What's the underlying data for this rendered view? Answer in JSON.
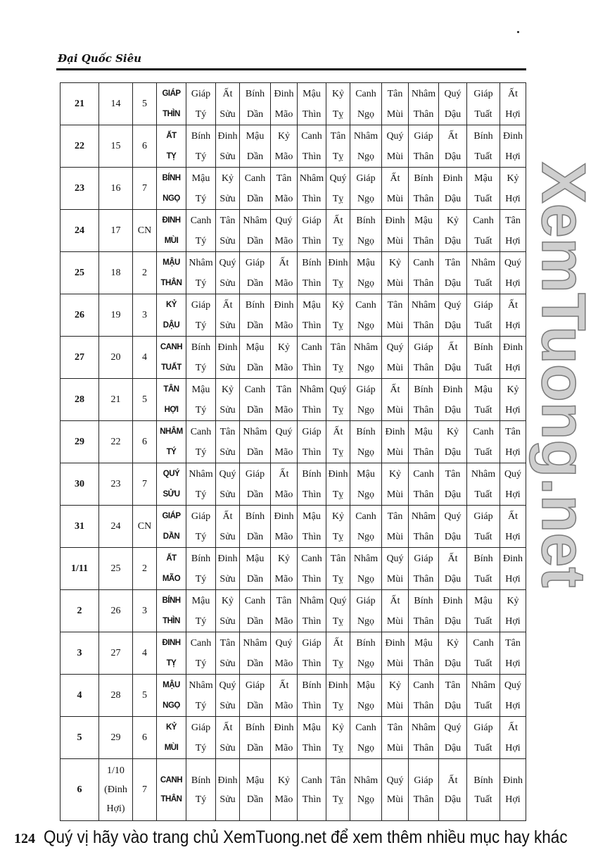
{
  "header": {
    "running_title": "Đại Quốc Siêu"
  },
  "page_number": "124",
  "watermark": "XemTuong.net",
  "footer": {
    "text": "Quý vị hãy vào trang chủ XemTuong.net để xem thêm nhiều mục hay khác"
  },
  "table": {
    "rows": [
      {
        "solar": "21",
        "lunar": "14",
        "weekday": "5",
        "day": [
          "GIÁP",
          "THÌN"
        ],
        "hours": [
          "Giáp Tý",
          "Ất Sửu",
          "Bính Dần",
          "Đinh Mão",
          "Mậu Thìn",
          "Kỷ Tỵ",
          "Canh Ngọ",
          "Tân Mùi",
          "Nhâm Thân",
          "Quý Dậu",
          "Giáp Tuất",
          "Ất Hợi"
        ]
      },
      {
        "solar": "22",
        "lunar": "15",
        "weekday": "6",
        "day": [
          "ẤT",
          "TỴ"
        ],
        "hours": [
          "Bính Tý",
          "Đinh Sửu",
          "Mậu Dần",
          "Kỷ Mão",
          "Canh Thìn",
          "Tân Tỵ",
          "Nhâm Ngọ",
          "Quý Mùi",
          "Giáp Thân",
          "Ất Dậu",
          "Bính Tuất",
          "Đinh Hợi"
        ]
      },
      {
        "solar": "23",
        "lunar": "16",
        "weekday": "7",
        "day": [
          "BÍNH",
          "NGỌ"
        ],
        "hours": [
          "Mậu Tý",
          "Kỷ Sửu",
          "Canh Dần",
          "Tân Mão",
          "Nhâm Thìn",
          "Quý Tỵ",
          "Giáp Ngọ",
          "Ất Mùi",
          "Bính Thân",
          "Đinh Dậu",
          "Mậu Tuất",
          "Kỷ Hợi"
        ]
      },
      {
        "solar": "24",
        "lunar": "17",
        "weekday": "CN",
        "day": [
          "ĐINH",
          "MÙI"
        ],
        "hours": [
          "Canh Tý",
          "Tân Sửu",
          "Nhâm Dần",
          "Quý Mão",
          "Giáp Thìn",
          "Ất Tỵ",
          "Bính Ngọ",
          "Đinh Mùi",
          "Mậu Thân",
          "Kỷ Dậu",
          "Canh Tuất",
          "Tân Hợi"
        ]
      },
      {
        "solar": "25",
        "lunar": "18",
        "weekday": "2",
        "day": [
          "MẬU",
          "THÂN"
        ],
        "hours": [
          "Nhâm Tý",
          "Quý Sửu",
          "Giáp Dần",
          "Ất Mão",
          "Bính Thìn",
          "Đinh Tỵ",
          "Mậu Ngọ",
          "Kỷ Mùi",
          "Canh Thân",
          "Tân Dậu",
          "Nhâm Tuất",
          "Quý Hợi"
        ]
      },
      {
        "solar": "26",
        "lunar": "19",
        "weekday": "3",
        "day": [
          "KỶ",
          "DẬU"
        ],
        "hours": [
          "Giáp Tý",
          "Ất Sửu",
          "Bính Dần",
          "Đinh Mão",
          "Mậu Thìn",
          "Kỷ Tỵ",
          "Canh Ngọ",
          "Tân Mùi",
          "Nhâm Thân",
          "Quý Dậu",
          "Giáp Tuất",
          "Ất Hợi"
        ]
      },
      {
        "solar": "27",
        "lunar": "20",
        "weekday": "4",
        "day": [
          "CANH",
          "TUẤT"
        ],
        "hours": [
          "Bính Tý",
          "Đinh Sửu",
          "Mậu Dần",
          "Kỷ Mão",
          "Canh Thìn",
          "Tân Tỵ",
          "Nhâm Ngọ",
          "Quý Mùi",
          "Giáp Thân",
          "Ất Dậu",
          "Bính Tuất",
          "Đinh Hợi"
        ]
      },
      {
        "solar": "28",
        "lunar": "21",
        "weekday": "5",
        "day": [
          "TÂN",
          "HỢI"
        ],
        "hours": [
          "Mậu Tý",
          "Kỷ Sửu",
          "Canh Dần",
          "Tân Mão",
          "Nhâm Thìn",
          "Quý Tỵ",
          "Giáp Ngọ",
          "Ất Mùi",
          "Bính Thân",
          "Đinh Dậu",
          "Mậu Tuất",
          "Kỷ Hợi"
        ]
      },
      {
        "solar": "29",
        "lunar": "22",
        "weekday": "6",
        "day": [
          "NHÂM",
          "TÝ"
        ],
        "hours": [
          "Canh Tý",
          "Tân Sửu",
          "Nhâm Dần",
          "Quý Mão",
          "Giáp Thìn",
          "Ất Tỵ",
          "Bính Ngọ",
          "Đinh Mùi",
          "Mậu Thân",
          "Kỷ Dậu",
          "Canh Tuất",
          "Tân Hợi"
        ]
      },
      {
        "solar": "30",
        "lunar": "23",
        "weekday": "7",
        "day": [
          "QUÝ",
          "SỬU"
        ],
        "hours": [
          "Nhâm Tý",
          "Quý Sửu",
          "Giáp Dần",
          "Ất Mão",
          "Bính Thìn",
          "Đinh Tỵ",
          "Mậu Ngọ",
          "Kỷ Mùi",
          "Canh Thân",
          "Tân Dậu",
          "Nhâm Tuất",
          "Quý Hợi"
        ]
      },
      {
        "solar": "31",
        "lunar": "24",
        "weekday": "CN",
        "day": [
          "GIÁP",
          "DẦN"
        ],
        "hours": [
          "Giáp Tý",
          "Ất Sửu",
          "Bính Dần",
          "Đinh Mão",
          "Mậu Thìn",
          "Kỷ Tỵ",
          "Canh Ngọ",
          "Tân Mùi",
          "Nhâm Thân",
          "Quý Dậu",
          "Giáp Tuất",
          "Ất Hợi"
        ]
      },
      {
        "solar": "1/11",
        "lunar": "25",
        "weekday": "2",
        "day": [
          "ẤT",
          "MÃO"
        ],
        "hours": [
          "Bính Tý",
          "Đinh Sửu",
          "Mậu Dần",
          "Kỷ Mão",
          "Canh Thìn",
          "Tân Tỵ",
          "Nhâm Ngọ",
          "Quý Mùi",
          "Giáp Thân",
          "Ất Dậu",
          "Bính Tuất",
          "Đinh Hợi"
        ]
      },
      {
        "solar": "2",
        "lunar": "26",
        "weekday": "3",
        "day": [
          "BÍNH",
          "THÌN"
        ],
        "hours": [
          "Mậu Tý",
          "Kỷ Sửu",
          "Canh Dần",
          "Tân Mão",
          "Nhâm Thìn",
          "Quý Tỵ",
          "Giáp Ngọ",
          "Ất Mùi",
          "Bính Thân",
          "Đinh Dậu",
          "Mậu Tuất",
          "Kỷ Hợi"
        ]
      },
      {
        "solar": "3",
        "lunar": "27",
        "weekday": "4",
        "day": [
          "ĐINH",
          "TỴ"
        ],
        "hours": [
          "Canh Tý",
          "Tân Sửu",
          "Nhâm Dần",
          "Quý Mão",
          "Giáp Thìn",
          "Ất Tỵ",
          "Bính Ngọ",
          "Đinh Mùi",
          "Mậu Thân",
          "Kỷ Dậu",
          "Canh Tuất",
          "Tân Hợi"
        ]
      },
      {
        "solar": "4",
        "lunar": "28",
        "weekday": "5",
        "day": [
          "MẬU",
          "NGỌ"
        ],
        "hours": [
          "Nhâm Tý",
          "Quý Sửu",
          "Giáp Dần",
          "Ất Mão",
          "Bính Thìn",
          "Đinh Tỵ",
          "Mậu Ngọ",
          "Kỷ Mùi",
          "Canh Thân",
          "Tân Dậu",
          "Nhâm Tuất",
          "Quý Hợi"
        ]
      },
      {
        "solar": "5",
        "lunar": "29",
        "weekday": "6",
        "day": [
          "KỶ",
          "MÙI"
        ],
        "hours": [
          "Giáp Tý",
          "Ất Sửu",
          "Bính Dần",
          "Đinh Mão",
          "Mậu Thìn",
          "Kỷ Tỵ",
          "Canh Ngọ",
          "Tân Mùi",
          "Nhâm Thân",
          "Quý Dậu",
          "Giáp Tuất",
          "Ất Hợi"
        ]
      },
      {
        "solar": "6",
        "lunar": "1/10 (Đinh Hợi)",
        "weekday": "7",
        "day": [
          "CANH",
          "THÂN"
        ],
        "hours": [
          "Bính Tý",
          "Đinh Sửu",
          "Mậu Dần",
          "Kỷ Mão",
          "Canh Thìn",
          "Tân Tỵ",
          "Nhâm Ngọ",
          "Quý Mùi",
          "Giáp Thân",
          "Ất Dậu",
          "Bính Tuất",
          "Đinh Hợi"
        ]
      }
    ]
  }
}
